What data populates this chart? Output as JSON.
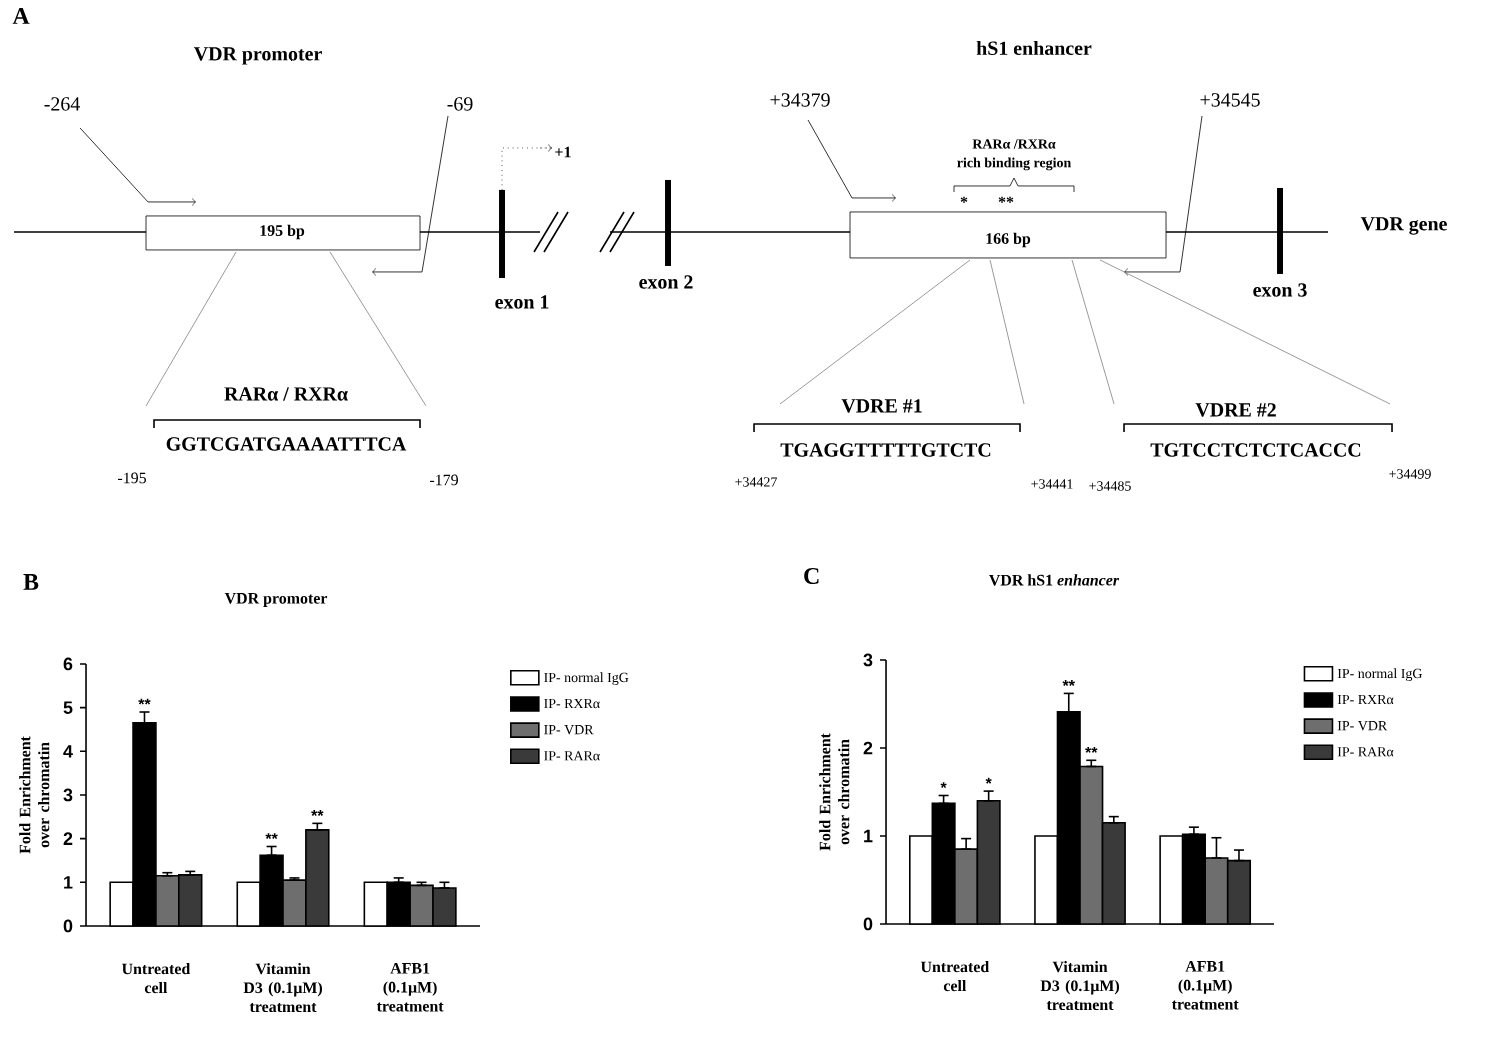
{
  "chart_data": [
    {
      "type": "other",
      "annotations": [
        "A",
        "VDR   promoter",
        "hS1 enhancer",
        "-264",
        "-69",
        "+1",
        "195 bp",
        "exon 1",
        "exon 2",
        "+34379",
        "RARα /RXRα",
        "rich binding region",
        "*",
        "**",
        "166 bp",
        "+34545",
        "VDR gene",
        "exon 3",
        "RARα / RXRα",
        "GGTCGATGAAAATTTCA",
        "-195",
        "-179",
        "VDRE #1",
        "TGAGGTTTTTGTCTC",
        "+34427",
        "+34441",
        "VDRE #2",
        "TGTCCTCTCTCACCC",
        "+34485",
        "+34499"
      ]
    },
    {
      "type": "bar",
      "title": "VDR promoter",
      "ylabel": "Fold  Enrichment over chromatin",
      "annotations": [
        "B"
      ],
      "categories": [
        "Untreated cell",
        "Vitamin D3 (0.1μM) treatment",
        "AFB1 (0.1μM) treatment"
      ],
      "ylim": [
        0,
        6
      ],
      "yticks": [
        0,
        1,
        2,
        3,
        4,
        5,
        6
      ],
      "legend": "right",
      "series": [
        {
          "name": "IP- normal IgG",
          "color": "#ffffff",
          "values": [
            1,
            1,
            1
          ]
        },
        {
          "name": "IP- RXRα",
          "color": "#000000",
          "values": [
            4.65,
            1.62,
            1.0
          ],
          "errors": [
            [
              4.65,
              4.9
            ],
            [
              1.62,
              1.82
            ],
            [
              1.0,
              1.1
            ]
          ],
          "value_labels": [
            "**",
            "**",
            null
          ]
        },
        {
          "name": "IP- VDR",
          "color": "#6e6e6e",
          "values": [
            1.15,
            1.05,
            0.93
          ],
          "errors": [
            [
              1.15,
              1.22
            ],
            [
              1.05,
              1.1
            ],
            [
              0.93,
              1.0
            ]
          ]
        },
        {
          "name": "IP- RARα",
          "color": "#3a3a3a",
          "values": [
            1.17,
            2.2,
            0.87
          ],
          "errors": [
            [
              1.17,
              1.25
            ],
            [
              2.2,
              2.35
            ],
            [
              0.87,
              1.0
            ]
          ],
          "value_labels": [
            null,
            "**",
            null
          ]
        }
      ]
    },
    {
      "type": "bar",
      "title": "VDR hS1 *enhancer*",
      "ylabel": "Fold  Enrichment over chromatin",
      "annotations": [
        "C"
      ],
      "categories": [
        "Untreated cell",
        "Vitamin D3 (0.1μM) treatment",
        "AFB1 (0.1μM) treatment"
      ],
      "ylim": [
        0,
        3
      ],
      "yticks": [
        0,
        1,
        2,
        3
      ],
      "legend": "right",
      "series": [
        {
          "name": "IP- normal IgG",
          "color": "#ffffff",
          "values": [
            1,
            1,
            1
          ]
        },
        {
          "name": "IP- RXRα",
          "color": "#000000",
          "values": [
            1.37,
            2.41,
            1.02
          ],
          "errors": [
            [
              1.37,
              1.46
            ],
            [
              2.41,
              2.62
            ],
            [
              1.02,
              1.1
            ]
          ],
          "value_labels": [
            "*",
            "**",
            null
          ]
        },
        {
          "name": "IP- VDR",
          "color": "#6e6e6e",
          "values": [
            0.85,
            1.79,
            0.75
          ],
          "errors": [
            [
              0.85,
              0.97
            ],
            [
              1.79,
              1.86
            ],
            [
              0.75,
              0.98
            ]
          ],
          "value_labels": [
            null,
            "**",
            null
          ]
        },
        {
          "name": "IP- RARα",
          "color": "#3a3a3a",
          "values": [
            1.4,
            1.15,
            0.72
          ],
          "errors": [
            [
              1.4,
              1.51
            ],
            [
              1.15,
              1.22
            ],
            [
              0.72,
              0.84
            ]
          ],
          "value_labels": [
            "*",
            null,
            null
          ]
        }
      ]
    }
  ]
}
